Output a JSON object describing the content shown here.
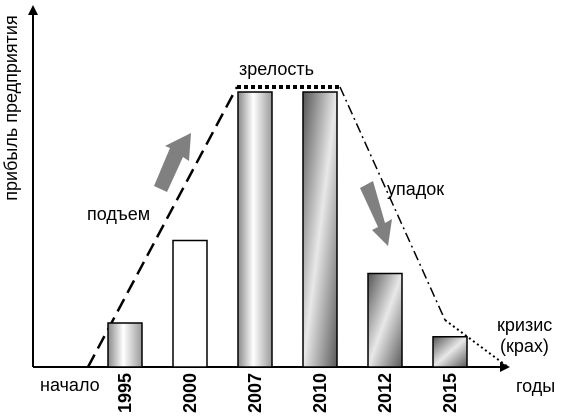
{
  "chart_data": {
    "type": "bar",
    "categories": [
      "1995",
      "2000",
      "2007",
      "2010",
      "2012",
      "2015"
    ],
    "values": [
      16,
      46,
      100,
      100,
      34,
      11
    ],
    "ylim": [
      0,
      120
    ],
    "xlabel": "годы",
    "ylabel": "прибыль предприятия",
    "axis_start_label": "начало",
    "grid": false,
    "annotations": {
      "rise": "подъем",
      "maturity": "зрелость",
      "decline": "упадок",
      "crisis_line1": "кризис",
      "crisis_line2": "(крах)"
    },
    "bar_fill_styles": [
      "light-gradient",
      "white",
      "light-gradient",
      "dark-gradient",
      "dark-gradient",
      "dark-gradient"
    ],
    "colors": {
      "axis": "#000000",
      "arrow": "#808080",
      "bar_outline": "#000000"
    }
  }
}
